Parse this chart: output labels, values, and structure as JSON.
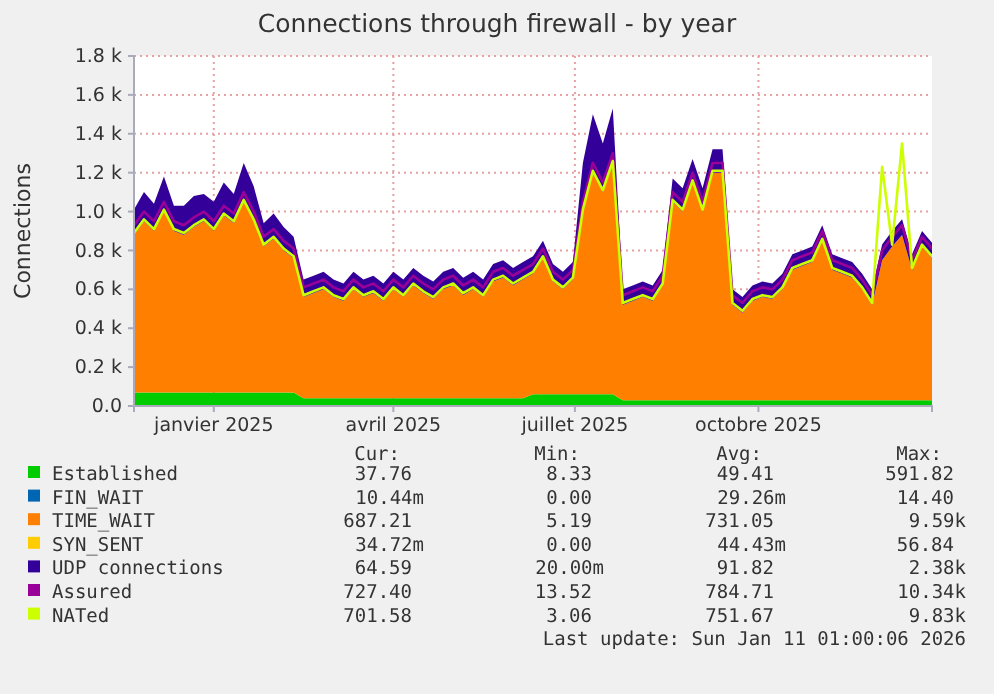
{
  "chart_data": {
    "type": "area",
    "title": "Connections through firewall - by year",
    "ylabel": "Connections",
    "stacked": true,
    "grid": true,
    "legend": "bottom",
    "x": [
      "2024-11-22",
      "2024-11-27",
      "2024-12-02",
      "2024-12-07",
      "2024-12-12",
      "2024-12-17",
      "2024-12-22",
      "2024-12-27",
      "2025-01-01",
      "2025-01-06",
      "2025-01-11",
      "2025-01-16",
      "2025-01-21",
      "2025-01-26",
      "2025-01-31",
      "2025-02-05",
      "2025-02-10",
      "2025-02-15",
      "2025-02-20",
      "2025-02-25",
      "2025-03-02",
      "2025-03-07",
      "2025-03-12",
      "2025-03-17",
      "2025-03-22",
      "2025-03-27",
      "2025-04-01",
      "2025-04-06",
      "2025-04-11",
      "2025-04-16",
      "2025-04-21",
      "2025-04-26",
      "2025-05-01",
      "2025-05-06",
      "2025-05-11",
      "2025-05-16",
      "2025-05-21",
      "2025-05-26",
      "2025-05-31",
      "2025-06-05",
      "2025-06-10",
      "2025-06-15",
      "2025-06-20",
      "2025-06-25",
      "2025-06-30",
      "2025-07-05",
      "2025-07-10",
      "2025-07-15",
      "2025-07-20",
      "2025-07-25",
      "2025-07-30",
      "2025-08-04",
      "2025-08-09",
      "2025-08-14",
      "2025-08-19",
      "2025-08-24",
      "2025-08-29",
      "2025-09-03",
      "2025-09-08",
      "2025-09-13",
      "2025-09-18",
      "2025-09-23",
      "2025-09-28",
      "2025-10-03",
      "2025-10-08",
      "2025-10-13",
      "2025-10-18",
      "2025-10-23",
      "2025-10-28",
      "2025-11-02",
      "2025-11-07",
      "2025-11-12",
      "2025-11-17",
      "2025-11-22",
      "2025-11-27",
      "2025-12-02",
      "2025-12-07",
      "2025-12-12",
      "2025-12-17",
      "2025-12-22",
      "2025-12-27"
    ],
    "xlim": [
      "2024-11-22",
      "2025-12-27"
    ],
    "xticks": [
      {
        "value": "2025-01-01",
        "label": "janvier 2025"
      },
      {
        "value": "2025-04-01",
        "label": "avril 2025"
      },
      {
        "value": "2025-07-01",
        "label": "juillet 2025"
      },
      {
        "value": "2025-10-01",
        "label": "octobre 2025"
      }
    ],
    "ylim": [
      0,
      1800
    ],
    "yticks": [
      {
        "value": 0,
        "label": "0.0"
      },
      {
        "value": 200,
        "label": "0.2 k"
      },
      {
        "value": 400,
        "label": "0.4 k"
      },
      {
        "value": 600,
        "label": "0.6 k"
      },
      {
        "value": 800,
        "label": "0.8 k"
      },
      {
        "value": 1000,
        "label": "1.0 k"
      },
      {
        "value": 1200,
        "label": "1.2 k"
      },
      {
        "value": 1400,
        "label": "1.4 k"
      },
      {
        "value": 1600,
        "label": "1.6 k"
      },
      {
        "value": 1800,
        "label": "1.8 k"
      }
    ],
    "series": [
      {
        "name": "Established",
        "color": "#00cc00",
        "values": [
          70,
          70,
          70,
          70,
          70,
          70,
          70,
          70,
          70,
          70,
          70,
          70,
          70,
          70,
          70,
          70,
          70,
          40,
          40,
          40,
          40,
          40,
          40,
          40,
          40,
          40,
          40,
          40,
          40,
          40,
          40,
          40,
          40,
          40,
          40,
          40,
          40,
          40,
          40,
          40,
          60,
          60,
          60,
          60,
          60,
          60,
          60,
          60,
          60,
          30,
          30,
          30,
          30,
          30,
          30,
          30,
          30,
          30,
          30,
          30,
          30,
          30,
          30,
          30,
          30,
          30,
          30,
          30,
          30,
          30,
          30,
          30,
          30,
          30,
          30,
          30,
          30,
          30,
          30,
          30,
          30
        ]
      },
      {
        "name": "FIN_WAIT",
        "color": "#0066b3",
        "values": [
          null,
          null,
          null,
          null,
          null,
          null,
          null,
          null,
          null,
          null,
          null,
          null,
          null,
          null,
          null,
          null,
          null,
          null,
          null,
          null,
          null,
          null,
          null,
          null,
          null,
          null,
          null,
          null,
          null,
          null,
          null,
          null,
          null,
          null,
          null,
          null,
          null,
          null,
          null,
          null,
          null,
          null,
          null,
          null,
          null,
          null,
          null,
          null,
          null,
          null,
          null,
          null,
          null,
          null,
          null,
          null,
          null,
          null,
          null,
          null,
          null,
          null,
          null,
          null,
          null,
          null,
          null,
          null,
          null,
          null,
          null,
          null,
          null,
          null,
          null,
          null,
          null,
          null,
          null,
          null,
          null
        ]
      },
      {
        "name": "TIME_WAIT",
        "color": "#ff8000",
        "values": [
          810,
          880,
          830,
          930,
          830,
          810,
          850,
          880,
          830,
          910,
          870,
          980,
          880,
          750,
          790,
          730,
          690,
          520,
          540,
          560,
          520,
          500,
          560,
          520,
          540,
          500,
          560,
          520,
          580,
          540,
          510,
          560,
          580,
          530,
          560,
          520,
          600,
          620,
          580,
          610,
          620,
          700,
          580,
          540,
          590,
          940,
          1140,
          1040,
          1190,
          490,
          510,
          530,
          510,
          590,
          1020,
          970,
          1120,
          970,
          1170,
          1170,
          490,
          450,
          510,
          530,
          520,
          570,
          670,
          690,
          710,
          820,
          670,
          650,
          630,
          570,
          490,
          720,
          790,
          850,
          670,
          790,
          730
        ]
      },
      {
        "name": "SYN_SENT",
        "color": "#ffcc00",
        "values": [
          null,
          null,
          null,
          null,
          null,
          null,
          null,
          null,
          null,
          null,
          null,
          null,
          null,
          null,
          null,
          null,
          null,
          null,
          null,
          null,
          null,
          null,
          null,
          null,
          null,
          null,
          null,
          null,
          null,
          null,
          null,
          null,
          null,
          null,
          null,
          null,
          null,
          null,
          null,
          null,
          null,
          null,
          null,
          null,
          null,
          null,
          null,
          null,
          null,
          null,
          null,
          null,
          null,
          null,
          null,
          null,
          null,
          null,
          null,
          null,
          null,
          null,
          null,
          null,
          null,
          null,
          null,
          null,
          null,
          null,
          null,
          null,
          null,
          null,
          null,
          null,
          null,
          null,
          null,
          null,
          null
        ]
      },
      {
        "name": "UDP connections",
        "color": "#330099",
        "values": [
          130,
          150,
          140,
          180,
          130,
          150,
          160,
          140,
          150,
          170,
          150,
          200,
          180,
          120,
          130,
          120,
          110,
          90,
          90,
          90,
          90,
          90,
          90,
          90,
          90,
          90,
          90,
          90,
          90,
          90,
          90,
          90,
          90,
          90,
          90,
          90,
          90,
          90,
          90,
          90,
          90,
          90,
          90,
          90,
          90,
          250,
          300,
          250,
          280,
          80,
          80,
          80,
          80,
          80,
          120,
          120,
          120,
          120,
          120,
          120,
          80,
          80,
          80,
          80,
          80,
          80,
          80,
          80,
          80,
          80,
          80,
          80,
          80,
          80,
          80,
          80,
          80,
          80,
          80,
          80,
          80
        ]
      },
      {
        "name": "Assured",
        "type": "line",
        "color": "#990099",
        "values": [
          930,
          1000,
          950,
          1050,
          950,
          930,
          970,
          1000,
          950,
          1030,
          990,
          1100,
          1000,
          870,
          910,
          850,
          810,
          610,
          630,
          650,
          610,
          590,
          650,
          610,
          630,
          590,
          650,
          610,
          670,
          630,
          600,
          650,
          670,
          620,
          650,
          610,
          690,
          710,
          670,
          700,
          730,
          810,
          690,
          650,
          700,
          1050,
          1250,
          1150,
          1300,
          570,
          590,
          610,
          590,
          670,
          1100,
          1050,
          1200,
          1050,
          1250,
          1250,
          570,
          530,
          590,
          610,
          600,
          650,
          750,
          770,
          790,
          900,
          750,
          730,
          710,
          650,
          570,
          800,
          870,
          930,
          750,
          870,
          810
        ]
      },
      {
        "name": "NATed",
        "type": "line",
        "color": "#ccff00",
        "values": [
          890,
          960,
          910,
          1010,
          910,
          890,
          930,
          960,
          910,
          990,
          950,
          1060,
          960,
          830,
          870,
          810,
          770,
          570,
          590,
          610,
          570,
          550,
          610,
          570,
          590,
          550,
          610,
          570,
          630,
          590,
          560,
          610,
          630,
          580,
          610,
          570,
          650,
          670,
          630,
          660,
          690,
          770,
          650,
          610,
          660,
          1010,
          1210,
          1110,
          1260,
          530,
          550,
          570,
          550,
          630,
          1060,
          1010,
          1160,
          1010,
          1210,
          1210,
          530,
          490,
          550,
          570,
          560,
          610,
          710,
          730,
          750,
          860,
          710,
          690,
          670,
          610,
          530,
          1230,
          830,
          1350,
          710,
          830,
          770
        ]
      }
    ],
    "annotations": [
      "Cur:",
      "Min:",
      "Avg:",
      "Max:",
      "37.76",
      "8.33",
      "49.41",
      "591.82",
      "10.44m",
      "0.00",
      "29.26m",
      "14.40",
      "687.21",
      "5.19",
      "731.05",
      "9.59k",
      "34.72m",
      "0.00",
      "44.43m",
      "56.84",
      "64.59",
      "20.00m",
      "91.82",
      "2.38k",
      "727.40",
      "13.52",
      "784.71",
      "10.34k",
      "701.58",
      "3.06",
      "751.67",
      "9.83k",
      "Last update: Sun Jan 11 01:00:06 2026"
    ]
  }
}
